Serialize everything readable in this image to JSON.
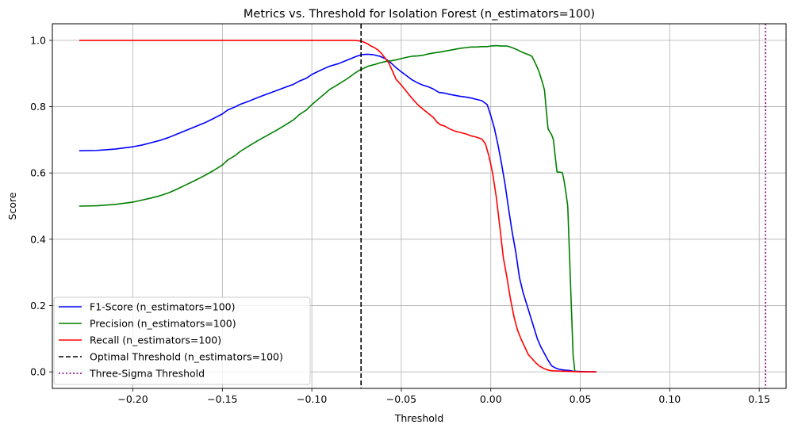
{
  "chart_data": {
    "type": "line",
    "title": "Metrics vs. Threshold for Isolation Forest (n_estimators=100)",
    "xlabel": "Threshold",
    "ylabel": "Score",
    "xlim": [
      -0.245,
      0.165
    ],
    "ylim": [
      -0.05,
      1.05
    ],
    "x_ticks": [
      -0.2,
      -0.15,
      -0.1,
      -0.05,
      0.0,
      0.05,
      0.1,
      0.15
    ],
    "x_tick_labels": [
      "−0.20",
      "−0.15",
      "−0.10",
      "−0.05",
      "0.00",
      "0.05",
      "0.10",
      "0.15"
    ],
    "y_ticks": [
      0.0,
      0.2,
      0.4,
      0.6,
      0.8,
      1.0
    ],
    "y_tick_labels": [
      "0.0",
      "0.2",
      "0.4",
      "0.6",
      "0.8",
      "1.0"
    ],
    "grid": true,
    "legend_position": "lower-left",
    "series": [
      {
        "name": "F1-Score (n_estimators=100)",
        "color": "#0000ff",
        "style": "solid",
        "points": [
          [
            -0.23,
            0.667
          ],
          [
            -0.22,
            0.668
          ],
          [
            -0.21,
            0.672
          ],
          [
            -0.2,
            0.679
          ],
          [
            -0.195,
            0.684
          ],
          [
            -0.19,
            0.691
          ],
          [
            -0.185,
            0.698
          ],
          [
            -0.18,
            0.707
          ],
          [
            -0.175,
            0.718
          ],
          [
            -0.17,
            0.729
          ],
          [
            -0.165,
            0.74
          ],
          [
            -0.16,
            0.751
          ],
          [
            -0.155,
            0.764
          ],
          [
            -0.15,
            0.778
          ],
          [
            -0.147,
            0.79
          ],
          [
            -0.143,
            0.799
          ],
          [
            -0.14,
            0.807
          ],
          [
            -0.135,
            0.817
          ],
          [
            -0.13,
            0.828
          ],
          [
            -0.125,
            0.838
          ],
          [
            -0.12,
            0.848
          ],
          [
            -0.115,
            0.858
          ],
          [
            -0.11,
            0.868
          ],
          [
            -0.107,
            0.877
          ],
          [
            -0.103,
            0.886
          ],
          [
            -0.1,
            0.897
          ],
          [
            -0.097,
            0.905
          ],
          [
            -0.093,
            0.915
          ],
          [
            -0.09,
            0.922
          ],
          [
            -0.085,
            0.93
          ],
          [
            -0.08,
            0.941
          ],
          [
            -0.075,
            0.952
          ],
          [
            -0.072,
            0.957
          ],
          [
            -0.069,
            0.958
          ],
          [
            -0.066,
            0.957
          ],
          [
            -0.062,
            0.952
          ],
          [
            -0.059,
            0.945
          ],
          [
            -0.056,
            0.933
          ],
          [
            -0.053,
            0.918
          ],
          [
            -0.05,
            0.905
          ],
          [
            -0.047,
            0.893
          ],
          [
            -0.044,
            0.881
          ],
          [
            -0.041,
            0.872
          ],
          [
            -0.038,
            0.865
          ],
          [
            -0.035,
            0.86
          ],
          [
            -0.032,
            0.853
          ],
          [
            -0.029,
            0.843
          ],
          [
            -0.026,
            0.841
          ],
          [
            -0.023,
            0.837
          ],
          [
            -0.02,
            0.834
          ],
          [
            -0.017,
            0.831
          ],
          [
            -0.014,
            0.829
          ],
          [
            -0.011,
            0.826
          ],
          [
            -0.008,
            0.822
          ],
          [
            -0.005,
            0.818
          ],
          [
            -0.002,
            0.806
          ],
          [
            0.0,
            0.773
          ],
          [
            0.002,
            0.735
          ],
          [
            0.004,
            0.685
          ],
          [
            0.006,
            0.628
          ],
          [
            0.008,
            0.565
          ],
          [
            0.01,
            0.49
          ],
          [
            0.012,
            0.42
          ],
          [
            0.014,
            0.36
          ],
          [
            0.016,
            0.285
          ],
          [
            0.018,
            0.24
          ],
          [
            0.02,
            0.205
          ],
          [
            0.022,
            0.17
          ],
          [
            0.024,
            0.135
          ],
          [
            0.026,
            0.1
          ],
          [
            0.028,
            0.075
          ],
          [
            0.03,
            0.055
          ],
          [
            0.032,
            0.035
          ],
          [
            0.034,
            0.018
          ],
          [
            0.036,
            0.012
          ],
          [
            0.038,
            0.008
          ],
          [
            0.04,
            0.006
          ],
          [
            0.042,
            0.005
          ],
          [
            0.044,
            0.004
          ],
          [
            0.046,
            0.002
          ],
          [
            0.05,
            0.001
          ],
          [
            0.055,
            0.0
          ],
          [
            0.059,
            0.0
          ]
        ]
      },
      {
        "name": "Precision (n_estimators=100)",
        "color": "#008000",
        "style": "solid",
        "points": [
          [
            -0.23,
            0.5
          ],
          [
            -0.22,
            0.501
          ],
          [
            -0.21,
            0.505
          ],
          [
            -0.2,
            0.512
          ],
          [
            -0.195,
            0.518
          ],
          [
            -0.19,
            0.524
          ],
          [
            -0.185,
            0.531
          ],
          [
            -0.18,
            0.54
          ],
          [
            -0.175,
            0.552
          ],
          [
            -0.17,
            0.565
          ],
          [
            -0.165,
            0.578
          ],
          [
            -0.16,
            0.592
          ],
          [
            -0.155,
            0.607
          ],
          [
            -0.15,
            0.624
          ],
          [
            -0.147,
            0.639
          ],
          [
            -0.143,
            0.652
          ],
          [
            -0.14,
            0.665
          ],
          [
            -0.135,
            0.682
          ],
          [
            -0.13,
            0.698
          ],
          [
            -0.125,
            0.713
          ],
          [
            -0.12,
            0.728
          ],
          [
            -0.115,
            0.744
          ],
          [
            -0.11,
            0.761
          ],
          [
            -0.107,
            0.776
          ],
          [
            -0.103,
            0.79
          ],
          [
            -0.1,
            0.806
          ],
          [
            -0.097,
            0.82
          ],
          [
            -0.093,
            0.838
          ],
          [
            -0.09,
            0.852
          ],
          [
            -0.085,
            0.868
          ],
          [
            -0.08,
            0.885
          ],
          [
            -0.077,
            0.897
          ],
          [
            -0.074,
            0.908
          ],
          [
            -0.071,
            0.916
          ],
          [
            -0.068,
            0.923
          ],
          [
            -0.065,
            0.927
          ],
          [
            -0.062,
            0.932
          ],
          [
            -0.059,
            0.936
          ],
          [
            -0.056,
            0.938
          ],
          [
            -0.053,
            0.941
          ],
          [
            -0.05,
            0.945
          ],
          [
            -0.047,
            0.949
          ],
          [
            -0.044,
            0.952
          ],
          [
            -0.041,
            0.953
          ],
          [
            -0.038,
            0.955
          ],
          [
            -0.035,
            0.959
          ],
          [
            -0.032,
            0.962
          ],
          [
            -0.029,
            0.964
          ],
          [
            -0.026,
            0.967
          ],
          [
            -0.023,
            0.97
          ],
          [
            -0.02,
            0.973
          ],
          [
            -0.017,
            0.976
          ],
          [
            -0.014,
            0.978
          ],
          [
            -0.011,
            0.98
          ],
          [
            -0.008,
            0.98
          ],
          [
            -0.005,
            0.981
          ],
          [
            -0.002,
            0.981
          ],
          [
            0.0,
            0.983
          ],
          [
            0.003,
            0.984
          ],
          [
            0.006,
            0.983
          ],
          [
            0.009,
            0.983
          ],
          [
            0.012,
            0.978
          ],
          [
            0.015,
            0.971
          ],
          [
            0.018,
            0.963
          ],
          [
            0.021,
            0.957
          ],
          [
            0.023,
            0.952
          ],
          [
            0.025,
            0.93
          ],
          [
            0.027,
            0.905
          ],
          [
            0.029,
            0.87
          ],
          [
            0.03,
            0.85
          ],
          [
            0.031,
            0.79
          ],
          [
            0.032,
            0.733
          ],
          [
            0.034,
            0.715
          ],
          [
            0.035,
            0.7
          ],
          [
            0.036,
            0.65
          ],
          [
            0.037,
            0.603
          ],
          [
            0.039,
            0.602
          ],
          [
            0.04,
            0.601
          ],
          [
            0.041,
            0.575
          ],
          [
            0.042,
            0.54
          ],
          [
            0.043,
            0.5
          ],
          [
            0.044,
            0.35
          ],
          [
            0.045,
            0.2
          ],
          [
            0.046,
            0.05
          ],
          [
            0.047,
            0.0
          ]
        ]
      },
      {
        "name": "Recall (n_estimators=100)",
        "color": "#ff0000",
        "style": "solid",
        "points": [
          [
            -0.23,
            1.0
          ],
          [
            -0.22,
            1.0
          ],
          [
            -0.2,
            1.0
          ],
          [
            -0.18,
            1.0
          ],
          [
            -0.16,
            1.0
          ],
          [
            -0.14,
            1.0
          ],
          [
            -0.12,
            1.0
          ],
          [
            -0.1,
            1.0
          ],
          [
            -0.09,
            1.0
          ],
          [
            -0.08,
            1.0
          ],
          [
            -0.076,
            1.0
          ],
          [
            -0.073,
            0.998
          ],
          [
            -0.071,
            0.995
          ],
          [
            -0.069,
            0.99
          ],
          [
            -0.067,
            0.983
          ],
          [
            -0.065,
            0.978
          ],
          [
            -0.063,
            0.971
          ],
          [
            -0.061,
            0.96
          ],
          [
            -0.059,
            0.946
          ],
          [
            -0.057,
            0.932
          ],
          [
            -0.055,
            0.908
          ],
          [
            -0.053,
            0.883
          ],
          [
            -0.05,
            0.865
          ],
          [
            -0.047,
            0.845
          ],
          [
            -0.044,
            0.825
          ],
          [
            -0.041,
            0.807
          ],
          [
            -0.038,
            0.793
          ],
          [
            -0.035,
            0.78
          ],
          [
            -0.032,
            0.767
          ],
          [
            -0.03,
            0.753
          ],
          [
            -0.028,
            0.745
          ],
          [
            -0.026,
            0.742
          ],
          [
            -0.023,
            0.733
          ],
          [
            -0.02,
            0.726
          ],
          [
            -0.017,
            0.722
          ],
          [
            -0.014,
            0.718
          ],
          [
            -0.011,
            0.712
          ],
          [
            -0.008,
            0.708
          ],
          [
            -0.005,
            0.702
          ],
          [
            -0.003,
            0.688
          ],
          [
            -0.001,
            0.65
          ],
          [
            0.001,
            0.6
          ],
          [
            0.003,
            0.53
          ],
          [
            0.005,
            0.44
          ],
          [
            0.007,
            0.345
          ],
          [
            0.009,
            0.285
          ],
          [
            0.011,
            0.22
          ],
          [
            0.013,
            0.165
          ],
          [
            0.015,
            0.125
          ],
          [
            0.017,
            0.098
          ],
          [
            0.019,
            0.075
          ],
          [
            0.021,
            0.052
          ],
          [
            0.023,
            0.04
          ],
          [
            0.025,
            0.028
          ],
          [
            0.027,
            0.018
          ],
          [
            0.029,
            0.012
          ],
          [
            0.031,
            0.007
          ],
          [
            0.033,
            0.004
          ],
          [
            0.035,
            0.003
          ],
          [
            0.04,
            0.002
          ],
          [
            0.045,
            0.001
          ],
          [
            0.05,
            0.0
          ],
          [
            0.059,
            0.0
          ]
        ]
      },
      {
        "name": "Optimal Threshold (n_estimators=100)",
        "color": "#000000",
        "style": "dashed",
        "vline_x": -0.0725
      },
      {
        "name": "Three-Sigma Threshold",
        "color": "#800080",
        "style": "dotted",
        "vline_x": 0.1535
      }
    ]
  }
}
